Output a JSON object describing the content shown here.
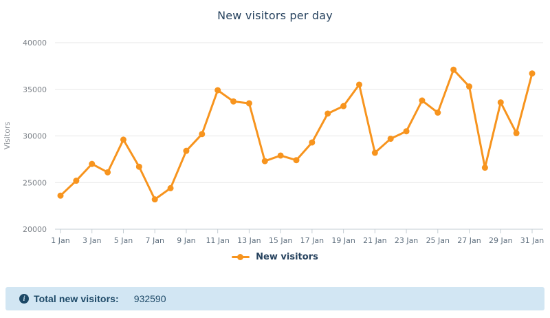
{
  "chart_data": {
    "type": "line",
    "title": "New visitors per day",
    "xlabel": "",
    "ylabel": "Visitors",
    "ylim": [
      20000,
      40000
    ],
    "yticks": [
      20000,
      25000,
      30000,
      35000,
      40000
    ],
    "xtick_interval": 2,
    "grid": "horizontal",
    "legend_position": "bottom",
    "categories": [
      "1 Jan",
      "2 Jan",
      "3 Jan",
      "4 Jan",
      "5 Jan",
      "6 Jan",
      "7 Jan",
      "8 Jan",
      "9 Jan",
      "10 Jan",
      "11 Jan",
      "12 Jan",
      "13 Jan",
      "14 Jan",
      "15 Jan",
      "16 Jan",
      "17 Jan",
      "18 Jan",
      "19 Jan",
      "20 Jan",
      "21 Jan",
      "22 Jan",
      "23 Jan",
      "24 Jan",
      "25 Jan",
      "26 Jan",
      "27 Jan",
      "28 Jan",
      "29 Jan",
      "30 Jan",
      "31 Jan"
    ],
    "series": [
      {
        "name": "New visitors",
        "color": "#F7941E",
        "values": [
          23600,
          25200,
          27000,
          26100,
          29600,
          26700,
          23200,
          24400,
          28400,
          30200,
          34900,
          33700,
          33500,
          27300,
          27900,
          27400,
          29300,
          32400,
          33200,
          35500,
          28200,
          29700,
          30500,
          33800,
          32500,
          37100,
          35300,
          26600,
          33600,
          30300,
          36700
        ]
      }
    ]
  },
  "colors": {
    "series": "#F7941E",
    "heading": "#26425E",
    "gridline": "#E7E7E7",
    "axis": "#C3CCD3",
    "footer_bg": "#D2E6F3",
    "footer_text": "#1C4866"
  },
  "footer": {
    "icon": "info-icon",
    "label": "Total new visitors:",
    "value": "932590"
  }
}
